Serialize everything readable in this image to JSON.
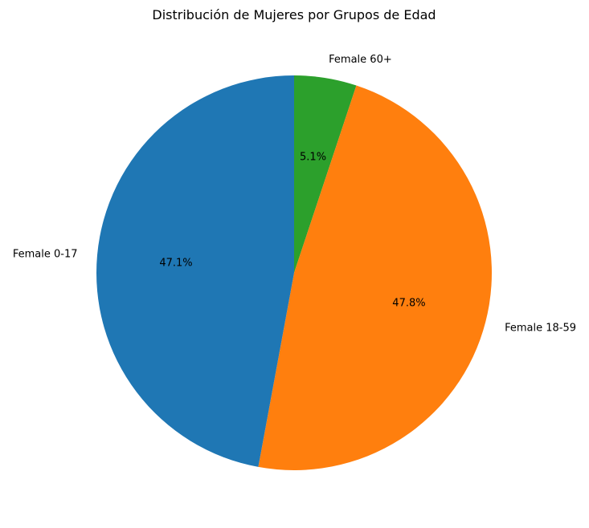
{
  "chart_data": {
    "type": "pie",
    "title": "Distribución de Mujeres por Grupos de Edad",
    "start_angle_deg": 90,
    "direction": "clockwise",
    "slices": [
      {
        "label": "Female 60+",
        "value": 5.1,
        "pct_label": "5.1%",
        "color": "#2ca02c"
      },
      {
        "label": "Female 18-59",
        "value": 47.8,
        "pct_label": "47.8%",
        "color": "#ff7f0e"
      },
      {
        "label": "Female 0-17",
        "value": 47.1,
        "pct_label": "47.1%",
        "color": "#1f77b4"
      }
    ]
  }
}
